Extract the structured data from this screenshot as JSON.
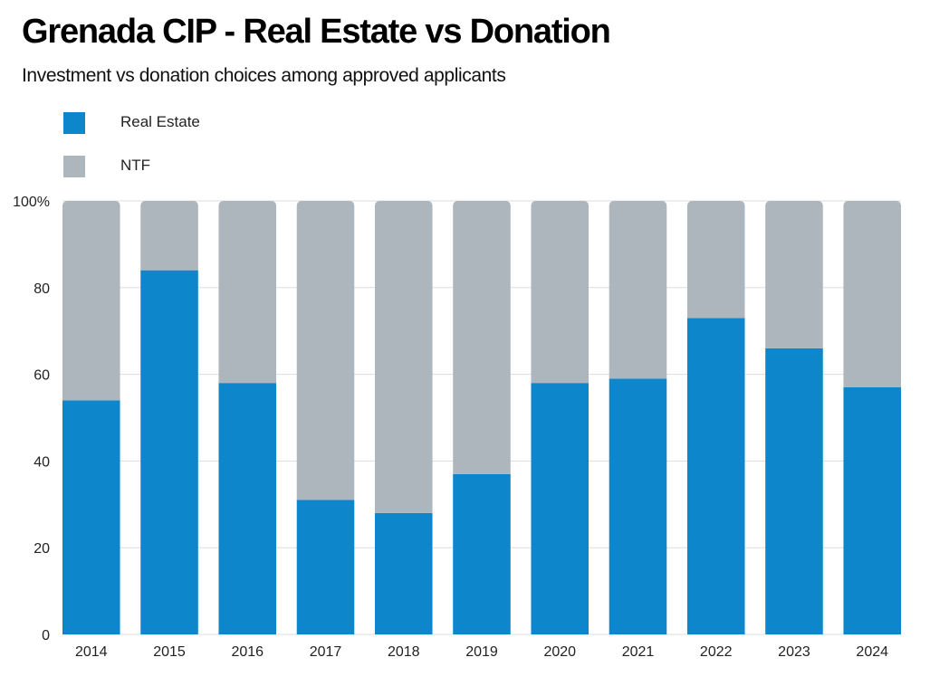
{
  "title": "Grenada CIP - Real Estate vs Donation",
  "subtitle": "Investment vs donation choices among approved applicants",
  "colors": {
    "real_estate": "#0d86cb",
    "ntf": "#adb5bd",
    "gridline": "#dddddd",
    "text": "#222222"
  },
  "legend": [
    {
      "label": "Real Estate",
      "color": "#0d86cb"
    },
    {
      "label": "NTF",
      "color": "#adb5bd"
    }
  ],
  "chart_data": {
    "type": "bar",
    "stacked": true,
    "title": "Grenada CIP - Real Estate vs Donation",
    "subtitle": "Investment vs donation choices among approved applicants",
    "categories": [
      "2014",
      "2015",
      "2016",
      "2017",
      "2018",
      "2019",
      "2020",
      "2021",
      "2022",
      "2023",
      "2024"
    ],
    "series": [
      {
        "name": "Real Estate",
        "color": "#0d86cb",
        "values": [
          54,
          84,
          58,
          31,
          28,
          37,
          58,
          59,
          73,
          66,
          57
        ]
      },
      {
        "name": "NTF",
        "color": "#adb5bd",
        "values": [
          46,
          16,
          42,
          69,
          72,
          63,
          42,
          41,
          27,
          34,
          43
        ]
      }
    ],
    "ylim": [
      0,
      100
    ],
    "yticks": [
      0,
      20,
      40,
      60,
      80,
      100
    ],
    "ytick_labels": [
      "0",
      "20",
      "40",
      "60",
      "80",
      "100%"
    ],
    "xlabel": "",
    "ylabel": "",
    "grid": true,
    "legend_position": "top-left"
  }
}
